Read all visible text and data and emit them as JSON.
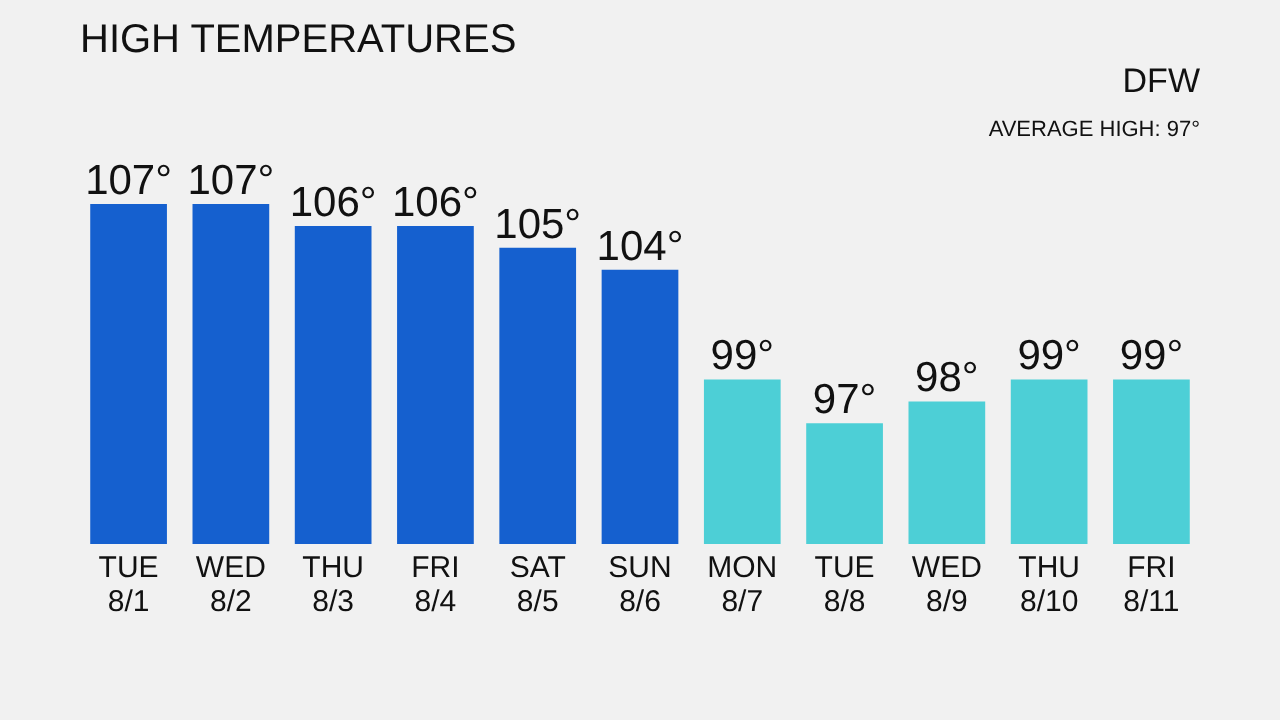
{
  "chart_data": {
    "type": "bar",
    "title": "HIGH TEMPERATURES",
    "categories": [
      "TUE\n8/1",
      "WED\n8/2",
      "THU\n8/3",
      "FRI\n8/4",
      "SAT\n8/5",
      "SUN\n8/6",
      "MON\n8/7",
      "TUE\n8/8",
      "WED\n8/9",
      "THU\n8/10",
      "FRI\n8/11"
    ],
    "values": [
      107,
      107,
      106,
      106,
      105,
      104,
      99,
      97,
      98,
      99,
      99
    ],
    "colors": [
      "#1560cf",
      "#1560cf",
      "#1560cf",
      "#1560cf",
      "#1560cf",
      "#1560cf",
      "#4dcfd6",
      "#4dcfd6",
      "#4dcfd6",
      "#4dcfd6",
      "#4dcfd6"
    ],
    "value_labels": [
      "107°",
      "107°",
      "106°",
      "106°",
      "105°",
      "104°",
      "99°",
      "97°",
      "98°",
      "99°",
      "99°"
    ],
    "ylim": [
      91.5,
      107
    ],
    "annotations": [
      "DFW",
      "AVERAGE HIGH: 97°"
    ]
  }
}
